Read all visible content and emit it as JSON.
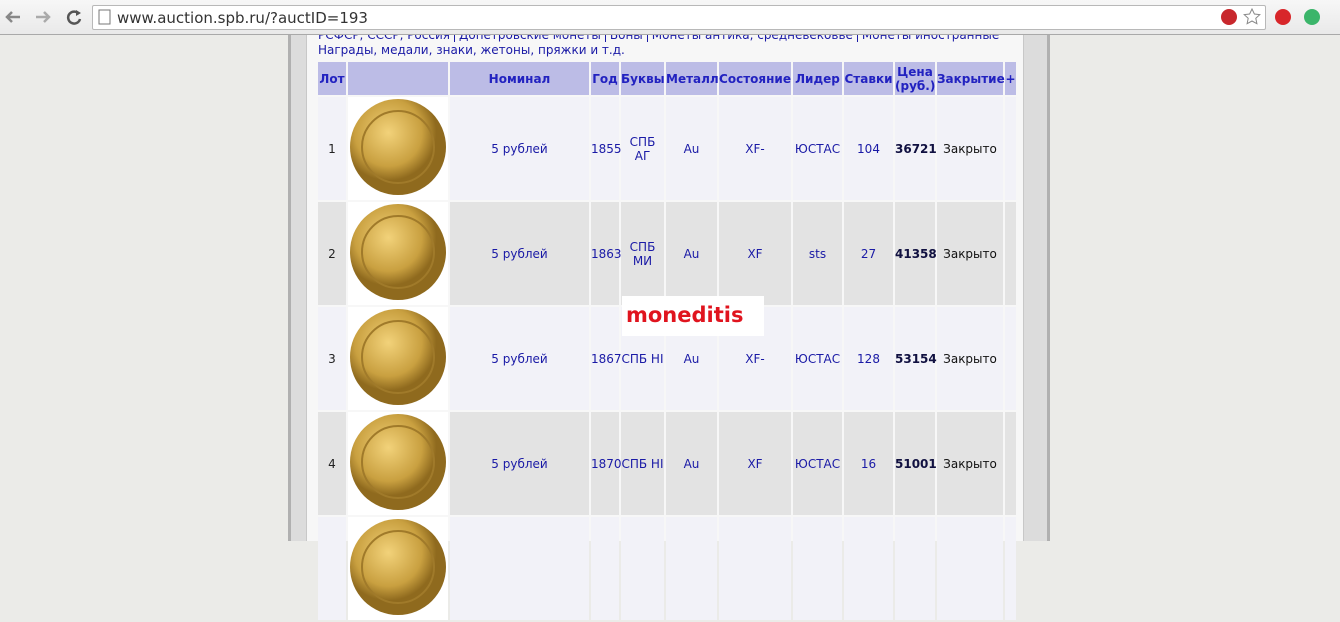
{
  "browser": {
    "url": "www.auction.spb.ru/?auctID=193"
  },
  "nav": {
    "links": [
      "РСФСР, СССР, Россия",
      "Допетровские монеты",
      "Боны",
      "Монеты антика, средневековье",
      "Монеты иностранные",
      "Награды, медали, знаки, жетоны, пряжки и т.д."
    ]
  },
  "table": {
    "headers": [
      "Лот",
      "Номинал",
      "Год",
      "Буквы",
      "Металл",
      "Состояние",
      "Лидер",
      "Ставки",
      "Цена (руб.)",
      "Закрытие",
      "+"
    ],
    "rows": [
      [
        1,
        "5 рублей",
        1855,
        "СПБ АГ",
        "Au",
        "XF-",
        "ЮСТАС",
        104,
        36721,
        "Закрыто"
      ],
      [
        2,
        "5 рублей",
        1863,
        "СПБ МИ",
        "Au",
        "XF",
        "sts",
        27,
        41358,
        "Закрыто"
      ],
      [
        3,
        "5 рублей",
        1867,
        "СПБ НІ",
        "Au",
        "XF-",
        "ЮСТАС",
        128,
        53154,
        "Закрыто"
      ],
      [
        4,
        "5 рублей",
        1870,
        "СПБ НІ",
        "Au",
        "XF",
        "ЮСТАС",
        16,
        51001,
        "Закрыто"
      ]
    ]
  },
  "watermark": "moneditis"
}
